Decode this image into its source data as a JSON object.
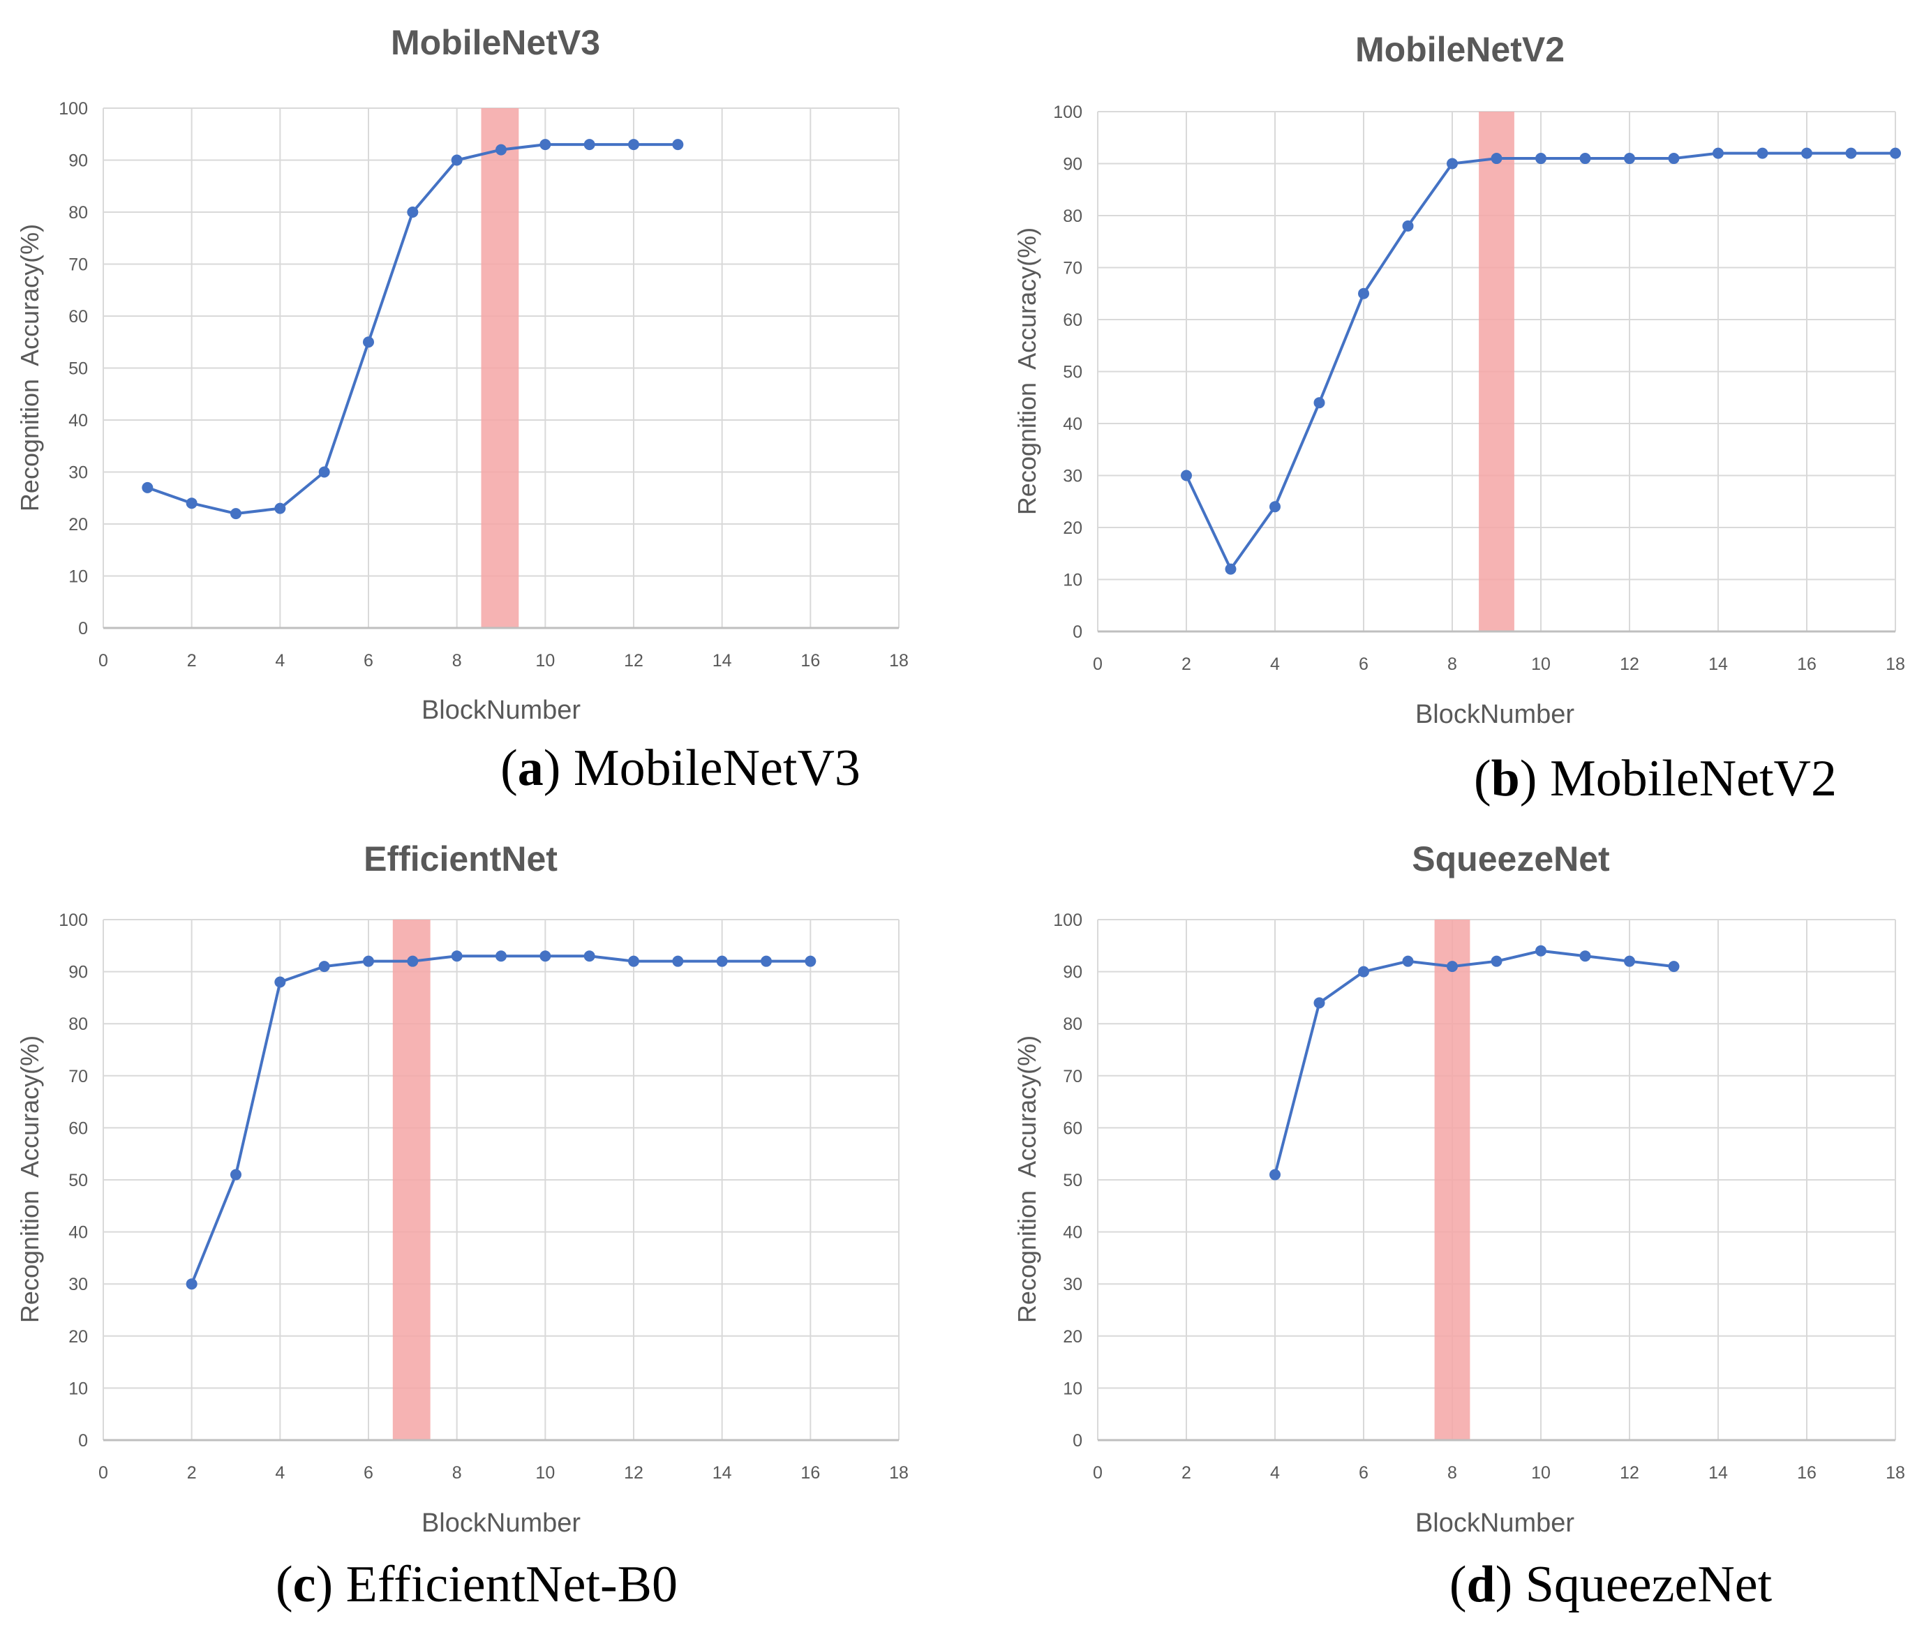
{
  "figure": {
    "colors": {
      "line": "#4472C4",
      "highlight": "#F4A6A6",
      "grid": "#D9D9D9",
      "text": "#595959",
      "caption": "#000000"
    }
  },
  "chart_data": [
    {
      "id": "a",
      "type": "line",
      "title": "MobileNetV3",
      "xlabel": "BlockNumber",
      "ylabel": "Recognition  Accuracy(%)",
      "xlim": [
        0,
        18
      ],
      "ylim": [
        0,
        100
      ],
      "xticks": [
        0,
        2,
        4,
        6,
        8,
        10,
        12,
        14,
        16,
        18
      ],
      "yticks": [
        0,
        10,
        20,
        30,
        40,
        50,
        60,
        70,
        80,
        90,
        100
      ],
      "grid": true,
      "highlight_x": [
        8.55,
        9.4
      ],
      "x": [
        1,
        2,
        3,
        4,
        5,
        6,
        7,
        8,
        9,
        10,
        11,
        12,
        13
      ],
      "y": [
        27,
        24,
        22,
        23,
        30,
        55,
        80,
        90,
        92,
        93,
        93,
        93,
        93
      ],
      "caption_letter": "a",
      "caption_text": "MobileNetV3"
    },
    {
      "id": "b",
      "type": "line",
      "title": "MobileNetV2",
      "xlabel": "BlockNumber",
      "ylabel": "Recognition  Accuracy(%)",
      "xlim": [
        0,
        18
      ],
      "ylim": [
        0,
        100
      ],
      "xticks": [
        0,
        2,
        4,
        6,
        8,
        10,
        12,
        14,
        16,
        18
      ],
      "yticks": [
        0,
        10,
        20,
        30,
        40,
        50,
        60,
        70,
        80,
        90,
        100
      ],
      "grid": true,
      "highlight_x": [
        8.6,
        9.4
      ],
      "x": [
        2,
        3,
        4,
        5,
        6,
        7,
        8,
        9,
        10,
        11,
        12,
        13,
        14,
        15,
        16,
        17,
        18
      ],
      "y": [
        30,
        12,
        24,
        44,
        65,
        78,
        90,
        91,
        91,
        91,
        91,
        91,
        92,
        92,
        92,
        92,
        92
      ],
      "caption_letter": "b",
      "caption_text": "MobileNetV2"
    },
    {
      "id": "c",
      "type": "line",
      "title": "EfficientNet",
      "xlabel": "BlockNumber",
      "ylabel": "Recognition  Accuracy(%)",
      "xlim": [
        0,
        18
      ],
      "ylim": [
        0,
        100
      ],
      "xticks": [
        0,
        2,
        4,
        6,
        8,
        10,
        12,
        14,
        16,
        18
      ],
      "yticks": [
        0,
        10,
        20,
        30,
        40,
        50,
        60,
        70,
        80,
        90,
        100
      ],
      "grid": true,
      "highlight_x": [
        6.55,
        7.4
      ],
      "x": [
        2,
        3,
        4,
        5,
        6,
        7,
        8,
        9,
        10,
        11,
        12,
        13,
        14,
        15,
        16
      ],
      "y": [
        30,
        51,
        88,
        91,
        92,
        92,
        93,
        93,
        93,
        93,
        92,
        92,
        92,
        92,
        92
      ],
      "caption_letter": "c",
      "caption_text": "EfficientNet-B0"
    },
    {
      "id": "d",
      "type": "line",
      "title": "SqueezeNet",
      "xlabel": "BlockNumber",
      "ylabel": "Recognition  Accuracy(%)",
      "xlim": [
        0,
        18
      ],
      "ylim": [
        0,
        100
      ],
      "xticks": [
        0,
        2,
        4,
        6,
        8,
        10,
        12,
        14,
        16,
        18
      ],
      "yticks": [
        0,
        10,
        20,
        30,
        40,
        50,
        60,
        70,
        80,
        90,
        100
      ],
      "grid": true,
      "highlight_x": [
        7.6,
        8.4
      ],
      "x": [
        4,
        5,
        6,
        7,
        8,
        9,
        10,
        11,
        12,
        13
      ],
      "y": [
        51,
        84,
        90,
        92,
        91,
        92,
        94,
        93,
        92,
        91
      ],
      "caption_letter": "d",
      "caption_text": "SqueezeNet"
    }
  ]
}
